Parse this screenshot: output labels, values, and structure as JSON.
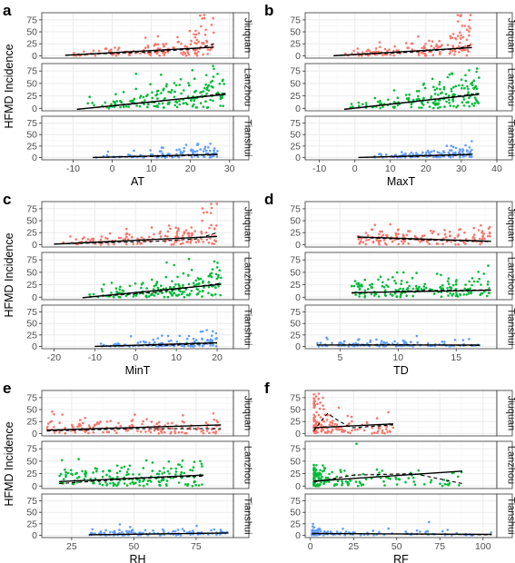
{
  "colors": {
    "Jiuquan": "#F8766D",
    "Lanzhou": "#00BA38",
    "Tianshui": "#619CFF",
    "grid_major": "#ebebeb",
    "grid_minor": "#f5f5f5",
    "border": "#333333",
    "strip_bg": "#ffffff"
  },
  "chart_data": [
    {
      "type": "scatter",
      "panel": "a",
      "xlabel": "AT",
      "ylabel": "HFMD Incidence",
      "x_ticks": [
        -10,
        0,
        10,
        20,
        30
      ],
      "x_tick_labels": [
        "-10",
        "0",
        "10",
        "20",
        "30"
      ],
      "xlim": [
        -18,
        31
      ],
      "y_ticks": [
        0,
        25,
        50,
        75
      ],
      "y_tick_labels": [
        "0",
        "25",
        "50",
        "75"
      ],
      "ylim": [
        -5,
        90
      ],
      "grid": true,
      "series": [
        {
          "name": "Jiuquan",
          "x_range": [
            -12,
            26
          ],
          "lm": [
            [
              -12,
              1
            ],
            [
              26,
              18
            ]
          ],
          "loess": [
            [
              -12,
              1
            ],
            [
              10,
              8
            ],
            [
              22,
              15
            ],
            [
              26,
              25
            ]
          ]
        },
        {
          "name": "Lanzhou",
          "x_range": [
            -9,
            29
          ],
          "lm": [
            [
              -9,
              -2
            ],
            [
              29,
              28
            ]
          ],
          "loess": [
            [
              -9,
              -2
            ],
            [
              10,
              12
            ],
            [
              29,
              30
            ]
          ]
        },
        {
          "name": "Tianshui",
          "x_range": [
            -5,
            27
          ],
          "lm": [
            [
              -5,
              0
            ],
            [
              27,
              7
            ]
          ],
          "loess": [
            [
              -5,
              0
            ],
            [
              15,
              3
            ],
            [
              27,
              6
            ]
          ]
        }
      ]
    },
    {
      "type": "scatter",
      "panel": "b",
      "xlabel": "MaxT",
      "ylabel": "",
      "x_ticks": [
        -10,
        0,
        10,
        20,
        30,
        40
      ],
      "x_tick_labels": [
        "-10",
        "0",
        "10",
        "20",
        "30",
        "40"
      ],
      "xlim": [
        -14,
        40
      ],
      "y_ticks": [
        0,
        25,
        50,
        75
      ],
      "y_tick_labels": [
        "0",
        "25",
        "50",
        "75"
      ],
      "ylim": [
        -5,
        90
      ],
      "grid": true,
      "series": [
        {
          "name": "Jiuquan",
          "x_range": [
            -6,
            33
          ],
          "lm": [
            [
              -6,
              0
            ],
            [
              33,
              17
            ]
          ],
          "loess": [
            [
              -6,
              0
            ],
            [
              15,
              7
            ],
            [
              28,
              14
            ],
            [
              33,
              22
            ]
          ]
        },
        {
          "name": "Lanzhou",
          "x_range": [
            -3,
            35
          ],
          "lm": [
            [
              -3,
              -2
            ],
            [
              35,
              28
            ]
          ],
          "loess": [
            [
              -3,
              -2
            ],
            [
              15,
              12
            ],
            [
              35,
              30
            ]
          ]
        },
        {
          "name": "Tianshui",
          "x_range": [
            1,
            33
          ],
          "lm": [
            [
              1,
              0
            ],
            [
              33,
              7
            ]
          ],
          "loess": [
            [
              1,
              0
            ],
            [
              20,
              3
            ],
            [
              33,
              6
            ]
          ]
        }
      ]
    },
    {
      "type": "scatter",
      "panel": "c",
      "xlabel": "MinT",
      "ylabel": "HFMD Incidence",
      "x_ticks": [
        -20,
        -10,
        0,
        10,
        20
      ],
      "x_tick_labels": [
        "-20",
        "-10",
        "0",
        "10",
        "20"
      ],
      "xlim": [
        -23,
        24
      ],
      "y_ticks": [
        0,
        25,
        50,
        75
      ],
      "y_tick_labels": [
        "0",
        "25",
        "50",
        "75"
      ],
      "ylim": [
        -5,
        90
      ],
      "grid": true,
      "series": [
        {
          "name": "Jiuquan",
          "x_range": [
            -20,
            20
          ],
          "lm": [
            [
              -20,
              1
            ],
            [
              20,
              17
            ]
          ],
          "loess": [
            [
              -20,
              1
            ],
            [
              5,
              7
            ],
            [
              15,
              12
            ],
            [
              20,
              25
            ]
          ]
        },
        {
          "name": "Lanzhou",
          "x_range": [
            -13,
            21
          ],
          "lm": [
            [
              -13,
              -1
            ],
            [
              21,
              26
            ]
          ],
          "loess": [
            [
              -13,
              -1
            ],
            [
              5,
              10
            ],
            [
              21,
              28
            ]
          ]
        },
        {
          "name": "Tianshui",
          "x_range": [
            -10,
            20
          ],
          "lm": [
            [
              -10,
              0
            ],
            [
              20,
              8
            ]
          ],
          "loess": [
            [
              -10,
              0
            ],
            [
              10,
              3
            ],
            [
              20,
              7
            ]
          ]
        }
      ]
    },
    {
      "type": "scatter",
      "panel": "d",
      "xlabel": "TD",
      "ylabel": "",
      "x_ticks": [
        5,
        10,
        15
      ],
      "x_tick_labels": [
        "5",
        "10",
        "15"
      ],
      "xlim": [
        2,
        18.5
      ],
      "y_ticks": [
        0,
        25,
        50,
        75
      ],
      "y_tick_labels": [
        "0",
        "25",
        "50",
        "75"
      ],
      "ylim": [
        -5,
        90
      ],
      "grid": true,
      "series": [
        {
          "name": "Jiuquan",
          "x_range": [
            6.5,
            18
          ],
          "lm": [
            [
              6.5,
              16
            ],
            [
              18,
              7
            ]
          ],
          "loess": [
            [
              6.5,
              15
            ],
            [
              12,
              10
            ],
            [
              18,
              6
            ]
          ]
        },
        {
          "name": "Lanzhou",
          "x_range": [
            6,
            18
          ],
          "lm": [
            [
              6,
              9
            ],
            [
              18,
              14
            ]
          ],
          "loess": [
            [
              6,
              8
            ],
            [
              12,
              13
            ],
            [
              18,
              15
            ]
          ]
        },
        {
          "name": "Tianshui",
          "x_range": [
            3,
            17
          ],
          "lm": [
            [
              3,
              3
            ],
            [
              17,
              3
            ]
          ],
          "loess": [
            [
              3,
              3
            ],
            [
              10,
              4
            ],
            [
              17,
              2
            ]
          ]
        }
      ]
    },
    {
      "type": "scatter",
      "panel": "e",
      "xlabel": "RH",
      "ylabel": "HFMD Incidence",
      "x_ticks": [
        25,
        50,
        75
      ],
      "x_tick_labels": [
        "25",
        "50",
        "75"
      ],
      "xlim": [
        13,
        90
      ],
      "y_ticks": [
        0,
        25,
        50,
        75
      ],
      "y_tick_labels": [
        "0",
        "25",
        "50",
        "75"
      ],
      "ylim": [
        -5,
        90
      ],
      "grid": true,
      "series": [
        {
          "name": "Jiuquan",
          "x_range": [
            15,
            85
          ],
          "lm": [
            [
              15,
              7
            ],
            [
              85,
              18
            ]
          ],
          "loess": [
            [
              15,
              5
            ],
            [
              50,
              10
            ],
            [
              85,
              10
            ]
          ]
        },
        {
          "name": "Lanzhou",
          "x_range": [
            20,
            78
          ],
          "lm": [
            [
              20,
              9
            ],
            [
              78,
              22
            ]
          ],
          "loess": [
            [
              20,
              5
            ],
            [
              50,
              15
            ],
            [
              78,
              20
            ]
          ]
        },
        {
          "name": "Tianshui",
          "x_range": [
            32,
            88
          ],
          "lm": [
            [
              32,
              1
            ],
            [
              88,
              5
            ]
          ],
          "loess": [
            [
              32,
              1
            ],
            [
              60,
              3
            ],
            [
              88,
              5
            ]
          ]
        }
      ]
    },
    {
      "type": "scatter",
      "panel": "f",
      "xlabel": "RF",
      "ylabel": "",
      "x_ticks": [
        0,
        25,
        50,
        75,
        100
      ],
      "x_tick_labels": [
        "0",
        "25",
        "50",
        "75",
        "100"
      ],
      "xlim": [
        -3,
        108
      ],
      "y_ticks": [
        0,
        25,
        50,
        75
      ],
      "y_tick_labels": [
        "0",
        "25",
        "50",
        "75"
      ],
      "ylim": [
        -5,
        90
      ],
      "grid": true,
      "series": [
        {
          "name": "Jiuquan",
          "x_range": [
            2,
            48
          ],
          "lm": [
            [
              2,
              12
            ],
            [
              48,
              20
            ]
          ],
          "loess": [
            [
              2,
              5
            ],
            [
              6,
              25
            ],
            [
              10,
              42
            ],
            [
              17,
              25
            ],
            [
              24,
              12
            ],
            [
              48,
              18
            ]
          ]
        },
        {
          "name": "Lanzhou",
          "x_range": [
            2,
            88
          ],
          "lm": [
            [
              2,
              10
            ],
            [
              88,
              30
            ]
          ],
          "loess": [
            [
              2,
              8
            ],
            [
              25,
              22
            ],
            [
              60,
              25
            ],
            [
              88,
              5
            ]
          ]
        },
        {
          "name": "Tianshui",
          "x_range": [
            1,
            105
          ],
          "lm": [
            [
              1,
              4
            ],
            [
              105,
              2
            ]
          ],
          "loess": [
            [
              1,
              3
            ],
            [
              50,
              3
            ],
            [
              105,
              1
            ]
          ]
        }
      ]
    }
  ]
}
